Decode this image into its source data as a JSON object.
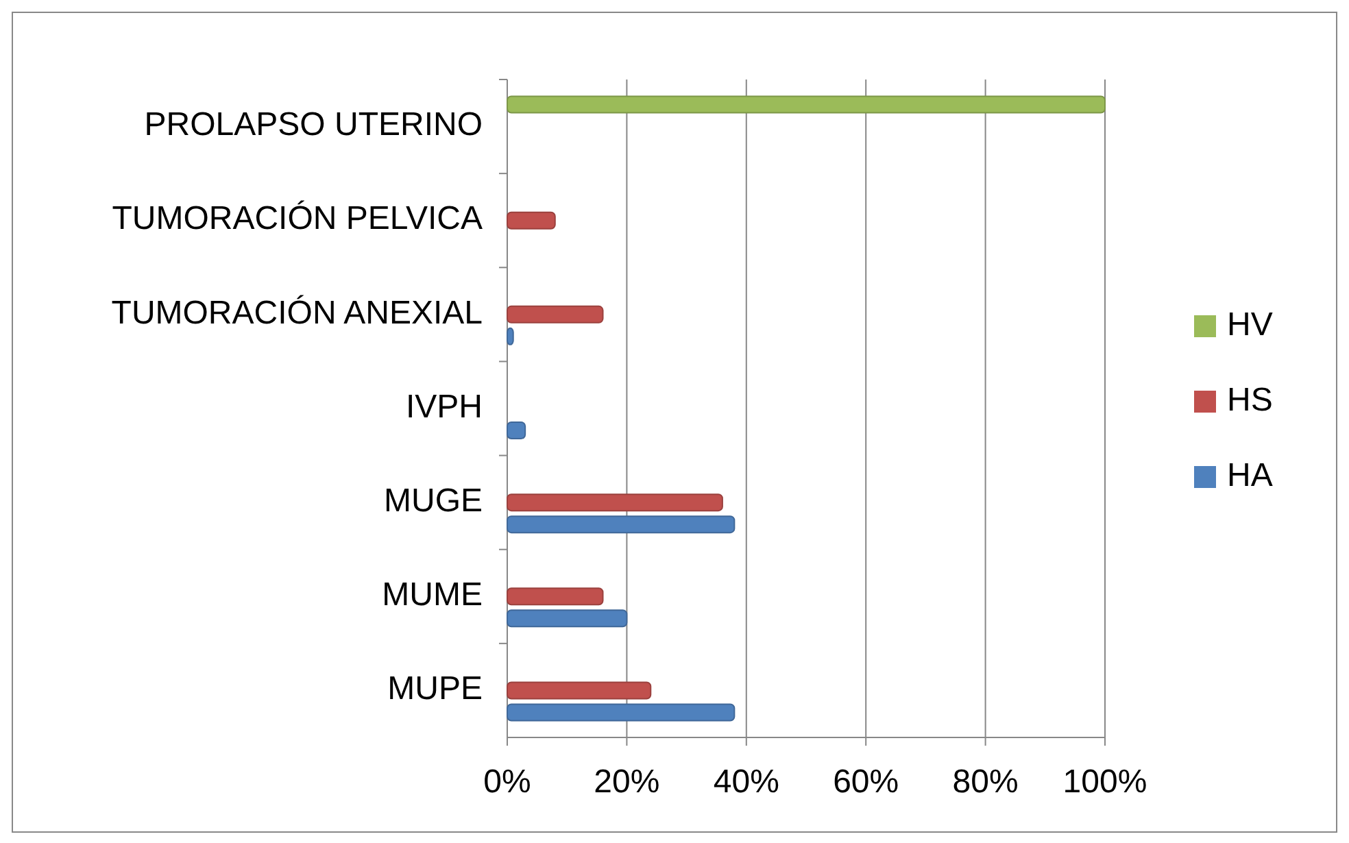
{
  "chart_data": {
    "type": "bar",
    "orientation": "horizontal",
    "categories": [
      "PROLAPSO UTERINO",
      "TUMORACIÓN PELVICA",
      "TUMORACIÓN ANEXIAL",
      "IVPH",
      "MUGE",
      "MUME",
      "MUPE"
    ],
    "series": [
      {
        "name": "HA",
        "color": "#4f81bd",
        "values": [
          0,
          0,
          1,
          3,
          38,
          20,
          38
        ]
      },
      {
        "name": "HS",
        "color": "#c0504d",
        "values": [
          0,
          8,
          16,
          0,
          36,
          16,
          24
        ]
      },
      {
        "name": "HV",
        "color": "#9bbb59",
        "values": [
          100,
          0,
          0,
          0,
          0,
          0,
          0
        ]
      }
    ],
    "xlim": [
      0,
      100
    ],
    "xticks": [
      {
        "value": 0,
        "label": "0%"
      },
      {
        "value": 20,
        "label": "20%"
      },
      {
        "value": 40,
        "label": "40%"
      },
      {
        "value": 60,
        "label": "60%"
      },
      {
        "value": 80,
        "label": "80%"
      },
      {
        "value": 100,
        "label": "100%"
      }
    ],
    "grid": "x",
    "legend": "right"
  }
}
